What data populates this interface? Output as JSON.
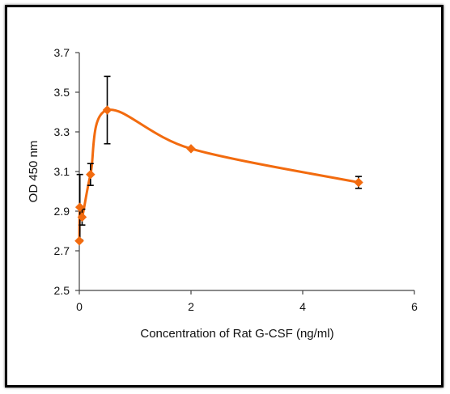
{
  "chart_data": {
    "type": "scatter",
    "title": "",
    "xlabel": "Concentration of Rat G-CSF (ng/ml)",
    "ylabel": "OD 450 nm",
    "xlim": [
      0,
      6
    ],
    "ylim": [
      2.5,
      3.7
    ],
    "xticks": [
      "0",
      "2",
      "4",
      "6"
    ],
    "yticks": [
      "2.5",
      "2.7",
      "2.9",
      "3.1",
      "3.3",
      "3.5",
      "3.7"
    ],
    "grid": false,
    "series": [
      {
        "color": "#f26b0f",
        "smooth": true,
        "marker": "diamond",
        "points": [
          {
            "x": 0,
            "y": 2.75,
            "err": 0
          },
          {
            "x": 0.01,
            "y": 2.92,
            "err": 0.165
          },
          {
            "x": 0.05,
            "y": 2.87,
            "err": 0.04
          },
          {
            "x": 0.2,
            "y": 3.085,
            "err": 0.055
          },
          {
            "x": 0.5,
            "y": 3.41,
            "err": 0.17
          },
          {
            "x": 2,
            "y": 3.215,
            "err": 0
          },
          {
            "x": 5,
            "y": 3.045,
            "err": 0.03
          }
        ]
      }
    ]
  }
}
